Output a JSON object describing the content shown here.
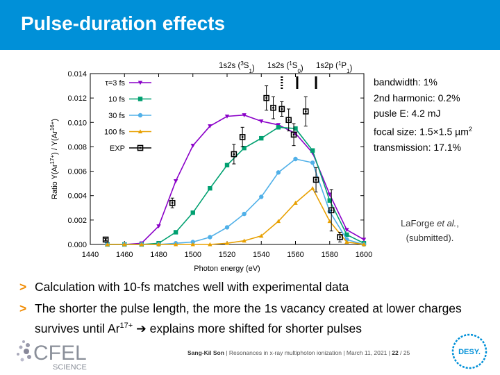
{
  "slide": {
    "title": "Pulse-duration effects",
    "bullets": [
      {
        "marker": ">",
        "text": "Calculation with 10-fs matches well with experimental data"
      },
      {
        "marker": ">",
        "text_pre": "The shorter the pulse length, the more the 1s vacancy created at lower charges survives until Ar",
        "sup": "17+",
        "text_post": " ➔ explains more shifted for shorter pulses"
      }
    ],
    "footer": {
      "author": "Sang-Kil Son",
      "separator": "|",
      "talk": "Resonances in x-ray multiphoton ionization",
      "date": "March 11, 2021",
      "page": "22",
      "total": "25"
    },
    "logo_left": {
      "text": "CFEL",
      "subtext": "SCIENCE"
    },
    "logo_right": {
      "text": "DESY."
    }
  },
  "info": {
    "bandwidth": "bandwidth: 1%",
    "harmonic": "2nd harmonic: 0.2%",
    "energy": "pusle E: 4.2 mJ",
    "focal_pre": "focal size: 1.5×1.5 µm",
    "focal_sup": "2",
    "transmission": "transmission: 17.1%"
  },
  "citation": {
    "line1_author": "LaForge ",
    "line1_etal": "et al.",
    "line1_end": ",",
    "line2": "(submitted)."
  },
  "chart_data": {
    "type": "line",
    "xlabel": "Photon energy (eV)",
    "ylabel_base": "Ratio Y(Ar",
    "ylabel_sup1": "17+",
    "ylabel_mid": ") / Y(Ar",
    "ylabel_sup2": "16+",
    "ylabel_end": ")",
    "xlim": [
      1440,
      1600
    ],
    "ylim": [
      0,
      0.014
    ],
    "xticks": [
      1440,
      1460,
      1480,
      1500,
      1520,
      1540,
      1560,
      1580,
      1600
    ],
    "xtick_labels": [
      "1440",
      "1460",
      "1480",
      "1500",
      "1520",
      "1540",
      "1560",
      "1580",
      "1600"
    ],
    "yticks": [
      0,
      0.002,
      0.004,
      0.006,
      0.008,
      0.01,
      0.012,
      0.014
    ],
    "ytick_labels": [
      "0.000",
      "0.002",
      "0.004",
      "0.006",
      "0.008",
      "0.010",
      "0.012",
      "0.014"
    ],
    "legend_placement": "top-left",
    "series": [
      {
        "name": "τ=3 fs",
        "color": "#8a00c8",
        "marker": "triangle-down",
        "x": [
          1450,
          1460,
          1470,
          1480,
          1490,
          1500,
          1510,
          1520,
          1530,
          1540,
          1550,
          1560,
          1570,
          1580,
          1590,
          1600
        ],
        "y": [
          0,
          0,
          0.0001,
          0.0015,
          0.0052,
          0.0081,
          0.0097,
          0.0105,
          0.0106,
          0.0101,
          0.0098,
          0.0091,
          0.0075,
          0.0041,
          0.0012,
          0.0004
        ]
      },
      {
        "name": "10 fs",
        "color": "#00a070",
        "marker": "square",
        "x": [
          1450,
          1460,
          1470,
          1480,
          1490,
          1500,
          1510,
          1520,
          1530,
          1540,
          1550,
          1560,
          1570,
          1580,
          1590,
          1600
        ],
        "y": [
          0,
          0,
          0,
          0.0001,
          0.001,
          0.0026,
          0.0046,
          0.0065,
          0.0079,
          0.0087,
          0.0096,
          0.0095,
          0.0077,
          0.0036,
          0.0008,
          0.0001
        ]
      },
      {
        "name": "30 fs",
        "color": "#50b0e8",
        "marker": "circle",
        "x": [
          1450,
          1460,
          1470,
          1480,
          1490,
          1500,
          1510,
          1520,
          1530,
          1540,
          1550,
          1560,
          1570,
          1580,
          1590,
          1600
        ],
        "y": [
          0,
          0,
          0,
          0,
          0.0001,
          0.0002,
          0.0006,
          0.0014,
          0.0025,
          0.0039,
          0.0059,
          0.007,
          0.0067,
          0.0027,
          0.0004,
          0
        ]
      },
      {
        "name": "100 fs",
        "color": "#e8a000",
        "marker": "triangle-up",
        "x": [
          1450,
          1460,
          1470,
          1480,
          1490,
          1500,
          1510,
          1520,
          1530,
          1540,
          1550,
          1560,
          1570,
          1580,
          1590,
          1600
        ],
        "y": [
          0,
          0,
          0,
          0,
          0,
          0,
          0,
          0.0001,
          0.0003,
          0.0007,
          0.0019,
          0.0034,
          0.0046,
          0.0019,
          0.0002,
          0
        ]
      },
      {
        "name": "EXP",
        "color": "#000000",
        "marker": "square-errorbar",
        "points": [
          {
            "x": 1449,
            "y": 0.0004,
            "err": 0.0001
          },
          {
            "x": 1488,
            "y": 0.0034,
            "err": 0.0004
          },
          {
            "x": 1524,
            "y": 0.0074,
            "err": 0.0008
          },
          {
            "x": 1529,
            "y": 0.0088,
            "err": 0.0008
          },
          {
            "x": 1543,
            "y": 0.012,
            "err": 0.001
          },
          {
            "x": 1547,
            "y": 0.0112,
            "err": 0.0009
          },
          {
            "x": 1552,
            "y": 0.0111,
            "err": 0.0006
          },
          {
            "x": 1556,
            "y": 0.0102,
            "err": 0.0009
          },
          {
            "x": 1559,
            "y": 0.009,
            "err": 0.0009
          },
          {
            "x": 1566,
            "y": 0.0109,
            "err": 0.0012
          },
          {
            "x": 1572,
            "y": 0.0053,
            "err": 0.001
          },
          {
            "x": 1581,
            "y": 0.0028,
            "err": 0.0017
          },
          {
            "x": 1586,
            "y": 0.0006,
            "err": 0.0004
          }
        ]
      }
    ],
    "resonances": [
      {
        "label_pre": "1s2s (",
        "sup": "3",
        "label_post": "S",
        "sub": "1",
        "end": ")",
        "x": 1552,
        "style": "dotted"
      },
      {
        "label_pre": "1s2s (",
        "sup": "1",
        "label_post": "S",
        "sub": "0",
        "end": ")",
        "x": 1561,
        "style": "solid"
      },
      {
        "label_pre": "1s2p (",
        "sup": "1",
        "label_post": "P",
        "sub": "1",
        "end": ")",
        "x": 1572,
        "style": "solid"
      }
    ]
  }
}
